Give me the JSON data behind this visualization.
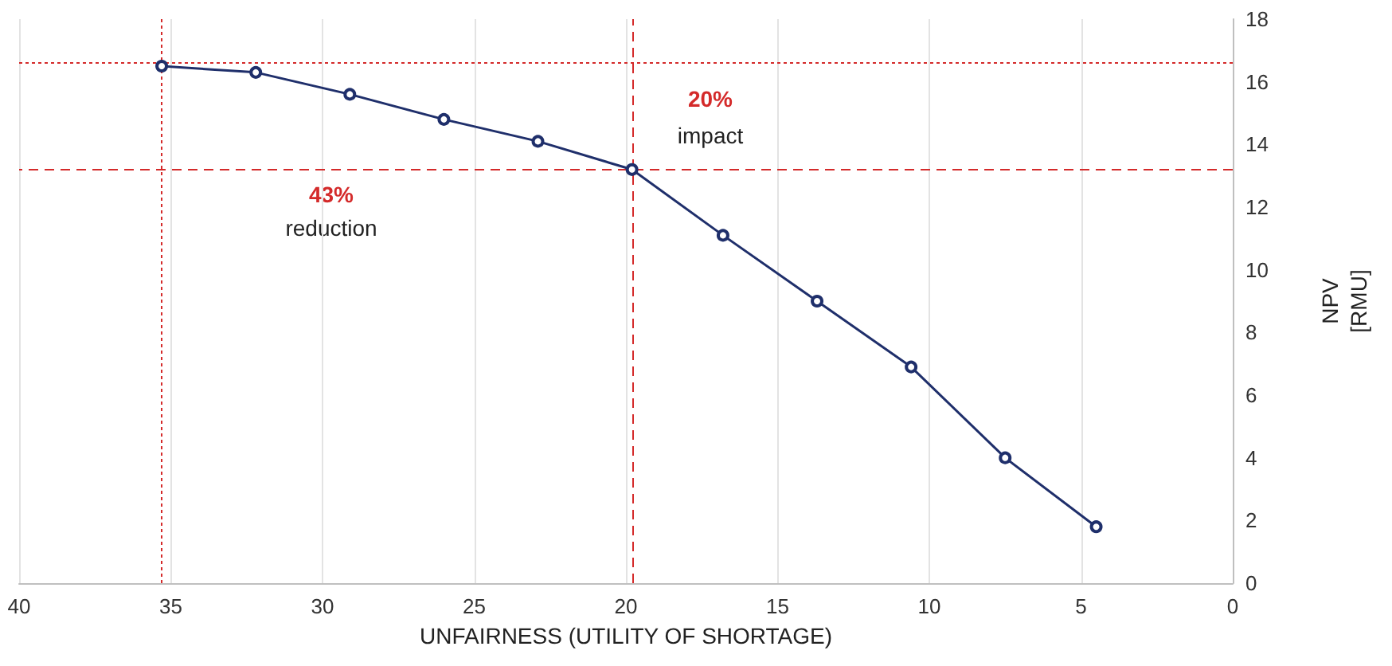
{
  "chart_data": {
    "type": "line",
    "xlabel": "UNFAIRNESS (UTILITY OF SHORTAGE)",
    "ylabel": "NPV\n[RMU]",
    "x": [
      35.3,
      32.2,
      29.1,
      26.0,
      22.9,
      19.8,
      16.8,
      13.7,
      10.6,
      7.5,
      4.5
    ],
    "series": [
      {
        "color": "#1f2f6b",
        "values": [
          16.5,
          16.3,
          15.6,
          14.8,
          14.1,
          13.2,
          11.1,
          9.0,
          6.9,
          4.0,
          1.8
        ]
      }
    ],
    "xlim": [
      40,
      0
    ],
    "xticks": [
      40,
      35,
      30,
      25,
      20,
      15,
      10,
      5,
      0
    ],
    "ylim": [
      0,
      18
    ],
    "yticks": [
      0,
      2,
      4,
      6,
      8,
      10,
      12,
      14,
      16,
      18
    ],
    "grid": "x",
    "marker": "circle",
    "line_style": "solid",
    "ref_lines": [
      {
        "axis": "y",
        "value": 16.6,
        "color": "#d42a2a",
        "line_style": "dotted"
      },
      {
        "axis": "y",
        "value": 13.2,
        "color": "#d42a2a",
        "line_style": "dashed"
      },
      {
        "axis": "x",
        "value": 35.3,
        "color": "#d42a2a",
        "line_style": "dotted"
      },
      {
        "axis": "x",
        "value": 19.8,
        "color": "#d42a2a",
        "line_style": "dashed"
      }
    ],
    "annotations": [
      "20%",
      "impact",
      "43%",
      "reduction"
    ]
  }
}
